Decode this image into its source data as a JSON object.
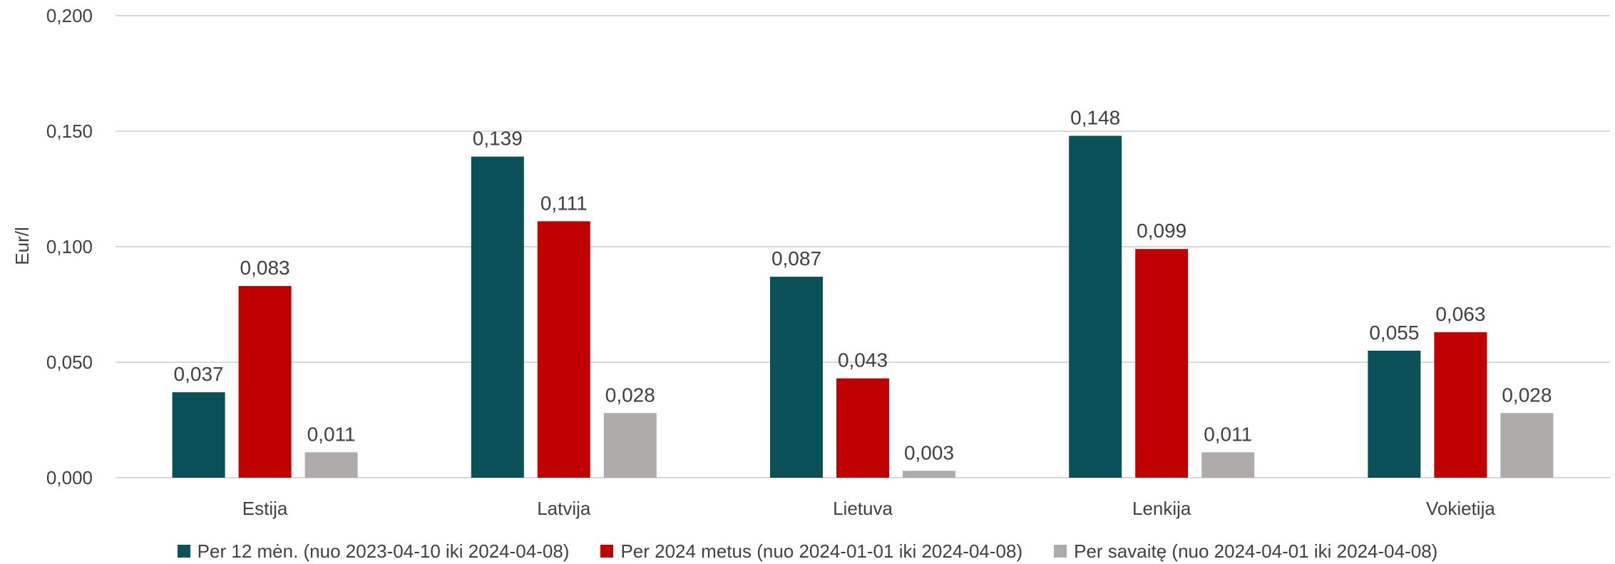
{
  "chart_data": {
    "type": "bar",
    "ylabel": "Eur/l",
    "ylim": [
      0,
      0.2
    ],
    "yticks": [
      "0,000",
      "0,050",
      "0,100",
      "0,150",
      "0,200"
    ],
    "ytick_values": [
      0,
      0.05,
      0.1,
      0.15,
      0.2
    ],
    "grid": true,
    "legend_position": "bottom",
    "categories": [
      "Estija",
      "Latvija",
      "Lietuva",
      "Lenkija",
      "Vokietija"
    ],
    "series": [
      {
        "name": "Per 12 mėn. (nuo 2023-04-10 iki 2024-04-08)",
        "color": "#0a5058",
        "values": [
          0.037,
          0.139,
          0.087,
          0.148,
          0.055
        ],
        "labels": [
          "0,037",
          "0,139",
          "0,087",
          "0,148",
          "0,055"
        ]
      },
      {
        "name": "Per 2024 metus (nuo 2024-01-01 iki 2024-04-08)",
        "color": "#c00000",
        "values": [
          0.083,
          0.111,
          0.043,
          0.099,
          0.063
        ],
        "labels": [
          "0,083",
          "0,111",
          "0,043",
          "0,099",
          "0,063"
        ]
      },
      {
        "name": "Per savaitę (nuo 2024-04-01 iki 2024-04-08)",
        "color": "#afabab",
        "values": [
          0.011,
          0.028,
          0.003,
          0.011,
          0.028
        ],
        "labels": [
          "0,011",
          "0,028",
          "0,003",
          "0,011",
          "0,028"
        ]
      }
    ]
  }
}
